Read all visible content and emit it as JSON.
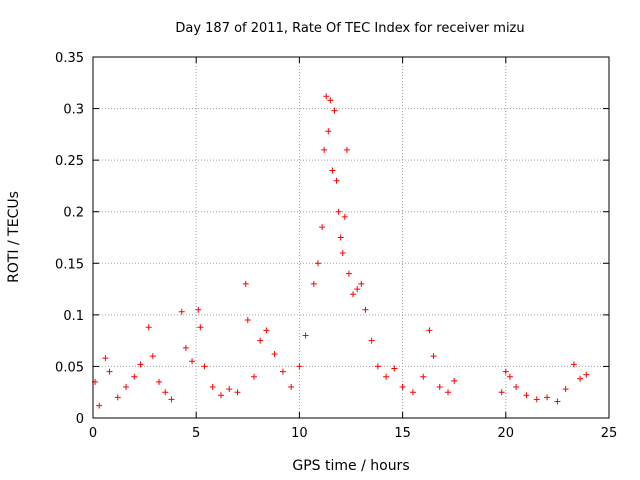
{
  "chart_data": {
    "type": "scatter",
    "title": "Day 187 of 2011, Rate Of TEC Index for receiver mizu",
    "xlabel": "GPS time / hours",
    "ylabel": "ROTI / TECUs",
    "xlim": [
      0,
      25
    ],
    "ylim": [
      0,
      0.35
    ],
    "xticks": [
      0,
      5,
      10,
      15,
      20,
      25
    ],
    "xtick_labels": [
      "0",
      "5",
      "10",
      "15",
      "20",
      "25"
    ],
    "yticks": [
      0,
      0.05,
      0.1,
      0.15,
      0.2,
      0.25,
      0.3,
      0.35
    ],
    "ytick_labels": [
      "0",
      "0.05",
      "0.1",
      "0.15",
      "0.2",
      "0.25",
      "0.3",
      "0.35"
    ],
    "grid": true,
    "marker": "plus",
    "color": "#ff0000",
    "series": [
      {
        "name": "ROTI",
        "points": [
          [
            0.1,
            0.035
          ],
          [
            0.3,
            0.012
          ],
          [
            0.6,
            0.058
          ],
          [
            0.8,
            0.045
          ],
          [
            1.2,
            0.02
          ],
          [
            1.6,
            0.03
          ],
          [
            2.0,
            0.04
          ],
          [
            2.3,
            0.052
          ],
          [
            2.7,
            0.088
          ],
          [
            2.9,
            0.06
          ],
          [
            3.2,
            0.035
          ],
          [
            3.5,
            0.025
          ],
          [
            3.8,
            0.018
          ],
          [
            4.3,
            0.103
          ],
          [
            4.5,
            0.068
          ],
          [
            4.8,
            0.055
          ],
          [
            5.1,
            0.105
          ],
          [
            5.2,
            0.088
          ],
          [
            5.4,
            0.05
          ],
          [
            5.8,
            0.03
          ],
          [
            6.2,
            0.022
          ],
          [
            6.6,
            0.028
          ],
          [
            7.0,
            0.025
          ],
          [
            7.4,
            0.13
          ],
          [
            7.5,
            0.095
          ],
          [
            7.8,
            0.04
          ],
          [
            8.1,
            0.075
          ],
          [
            8.4,
            0.085
          ],
          [
            8.8,
            0.062
          ],
          [
            9.2,
            0.045
          ],
          [
            9.6,
            0.03
          ],
          [
            10.0,
            0.05
          ],
          [
            10.3,
            0.08
          ],
          [
            10.7,
            0.13
          ],
          [
            10.9,
            0.15
          ],
          [
            11.1,
            0.185
          ],
          [
            11.2,
            0.26
          ],
          [
            11.3,
            0.312
          ],
          [
            11.4,
            0.278
          ],
          [
            11.5,
            0.308
          ],
          [
            11.6,
            0.24
          ],
          [
            11.7,
            0.298
          ],
          [
            11.8,
            0.23
          ],
          [
            11.9,
            0.2
          ],
          [
            12.0,
            0.175
          ],
          [
            12.1,
            0.16
          ],
          [
            12.2,
            0.195
          ],
          [
            12.3,
            0.26
          ],
          [
            12.4,
            0.14
          ],
          [
            12.6,
            0.12
          ],
          [
            12.8,
            0.125
          ],
          [
            13.0,
            0.13
          ],
          [
            13.2,
            0.105
          ],
          [
            13.5,
            0.075
          ],
          [
            13.8,
            0.05
          ],
          [
            14.2,
            0.04
          ],
          [
            14.6,
            0.048
          ],
          [
            15.0,
            0.03
          ],
          [
            15.5,
            0.025
          ],
          [
            16.0,
            0.04
          ],
          [
            16.3,
            0.085
          ],
          [
            16.5,
            0.06
          ],
          [
            16.8,
            0.03
          ],
          [
            17.2,
            0.025
          ],
          [
            17.5,
            0.036
          ],
          [
            19.8,
            0.025
          ],
          [
            20.0,
            0.045
          ],
          [
            20.2,
            0.04
          ],
          [
            20.5,
            0.03
          ],
          [
            21.0,
            0.022
          ],
          [
            21.5,
            0.018
          ],
          [
            22.0,
            0.02
          ],
          [
            22.5,
            0.016
          ],
          [
            22.9,
            0.028
          ],
          [
            23.3,
            0.052
          ],
          [
            23.6,
            0.038
          ],
          [
            23.9,
            0.042
          ]
        ]
      }
    ]
  }
}
